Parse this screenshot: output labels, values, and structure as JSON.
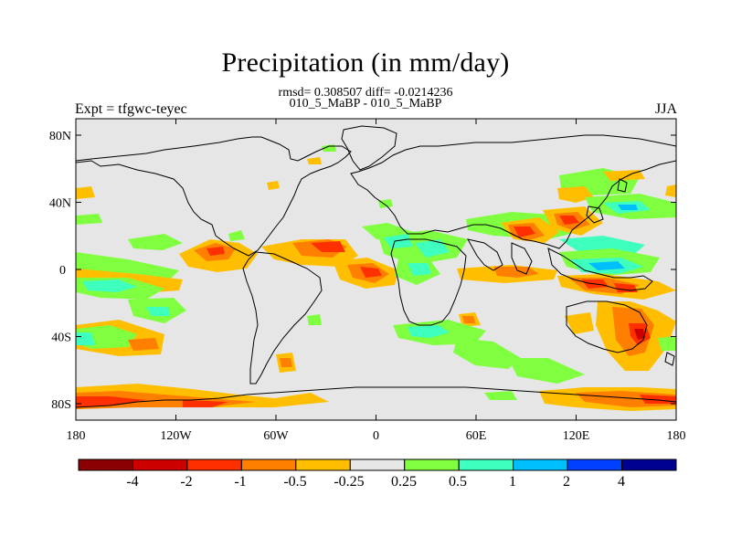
{
  "title": "Precipitation (in mm/day)",
  "stats_line": "rmsd= 0.308507 diff= -0.0214236",
  "subtitle": "010_5_MaBP - 010_5_MaBP",
  "left_label": "Expt = tfgwc-teyec",
  "right_label": "JJA",
  "axes": {
    "x_ticks": [
      "180",
      "120W",
      "60W",
      "0",
      "60E",
      "120E",
      "180"
    ],
    "y_ticks": [
      "80N",
      "40N",
      "0",
      "40S",
      "80S"
    ]
  },
  "colorbar": {
    "colors": [
      "#8b0000",
      "#cd0000",
      "#ff3000",
      "#ff7f00",
      "#ffbf00",
      "#e6e6e6",
      "#7fff3f",
      "#3fffbf",
      "#00bfff",
      "#0040ff",
      "#000090"
    ],
    "labels": [
      "-4",
      "-2",
      "-1",
      "-0.5",
      "-0.25",
      "0.25",
      "0.5",
      "1",
      "2",
      "4"
    ]
  },
  "chart_data": {
    "type": "heatmap",
    "title": "Precipitation (in mm/day)",
    "subtitle": "010_5_MaBP - 010_5_MaBP",
    "variable": "Precipitation",
    "units": "mm/day",
    "season": "JJA",
    "rmsd": 0.308507,
    "diff": -0.0214236,
    "xlim": [
      -180,
      180
    ],
    "ylim": [
      -90,
      90
    ],
    "contour_levels": [
      -4,
      -2,
      -1,
      -0.5,
      -0.25,
      0.25,
      0.5,
      1,
      2,
      4
    ]
  }
}
